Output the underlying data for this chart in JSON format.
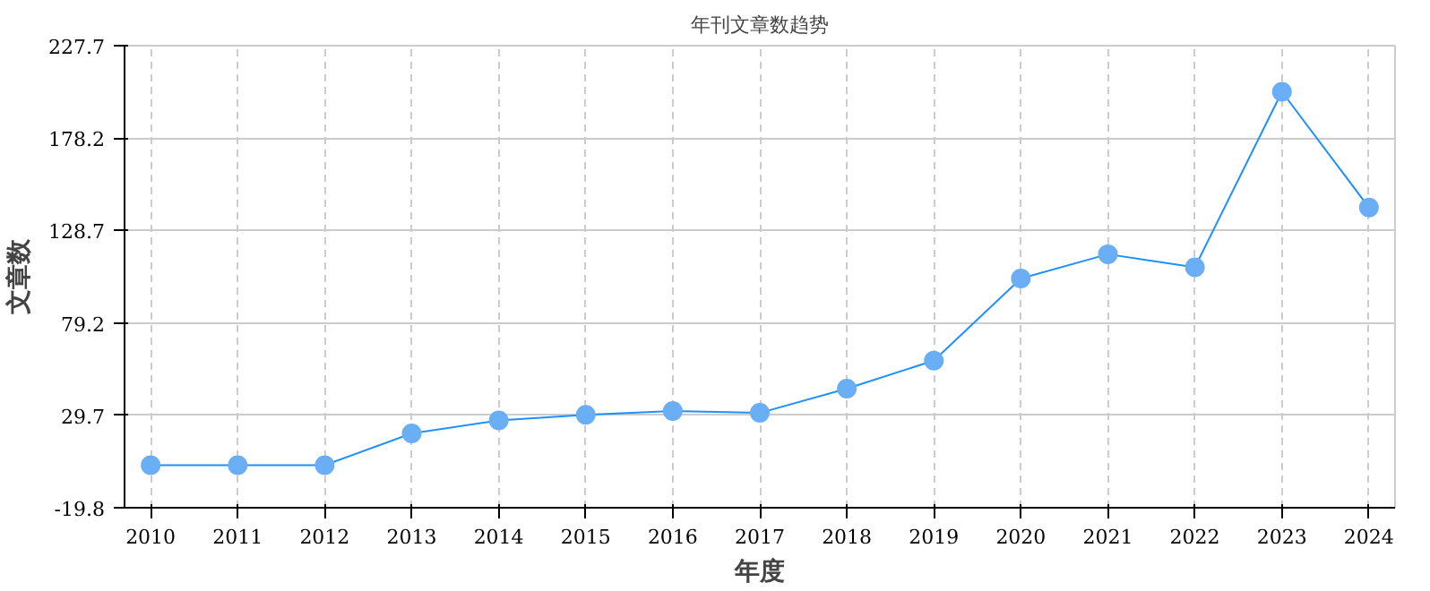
{
  "chart_data": {
    "type": "line",
    "title": "年刊文章数趋势",
    "xlabel": "年度",
    "ylabel": "文章数",
    "categories": [
      "2010",
      "2011",
      "2012",
      "2013",
      "2014",
      "2015",
      "2016",
      "2017",
      "2018",
      "2019",
      "2020",
      "2021",
      "2022",
      "2023",
      "2024"
    ],
    "series": [
      {
        "color": "#1e90ff",
        "values": [
          3,
          3,
          3,
          20,
          27,
          30,
          32,
          31,
          44,
          59,
          103,
          116,
          109,
          203,
          141
        ]
      }
    ],
    "ylim": [
      -19.8,
      227.7
    ],
    "yticks": [
      -19.8,
      29.7,
      79.2,
      128.7,
      178.2,
      227.7
    ],
    "grid": true,
    "marker": "circle",
    "line_style": "solid"
  }
}
